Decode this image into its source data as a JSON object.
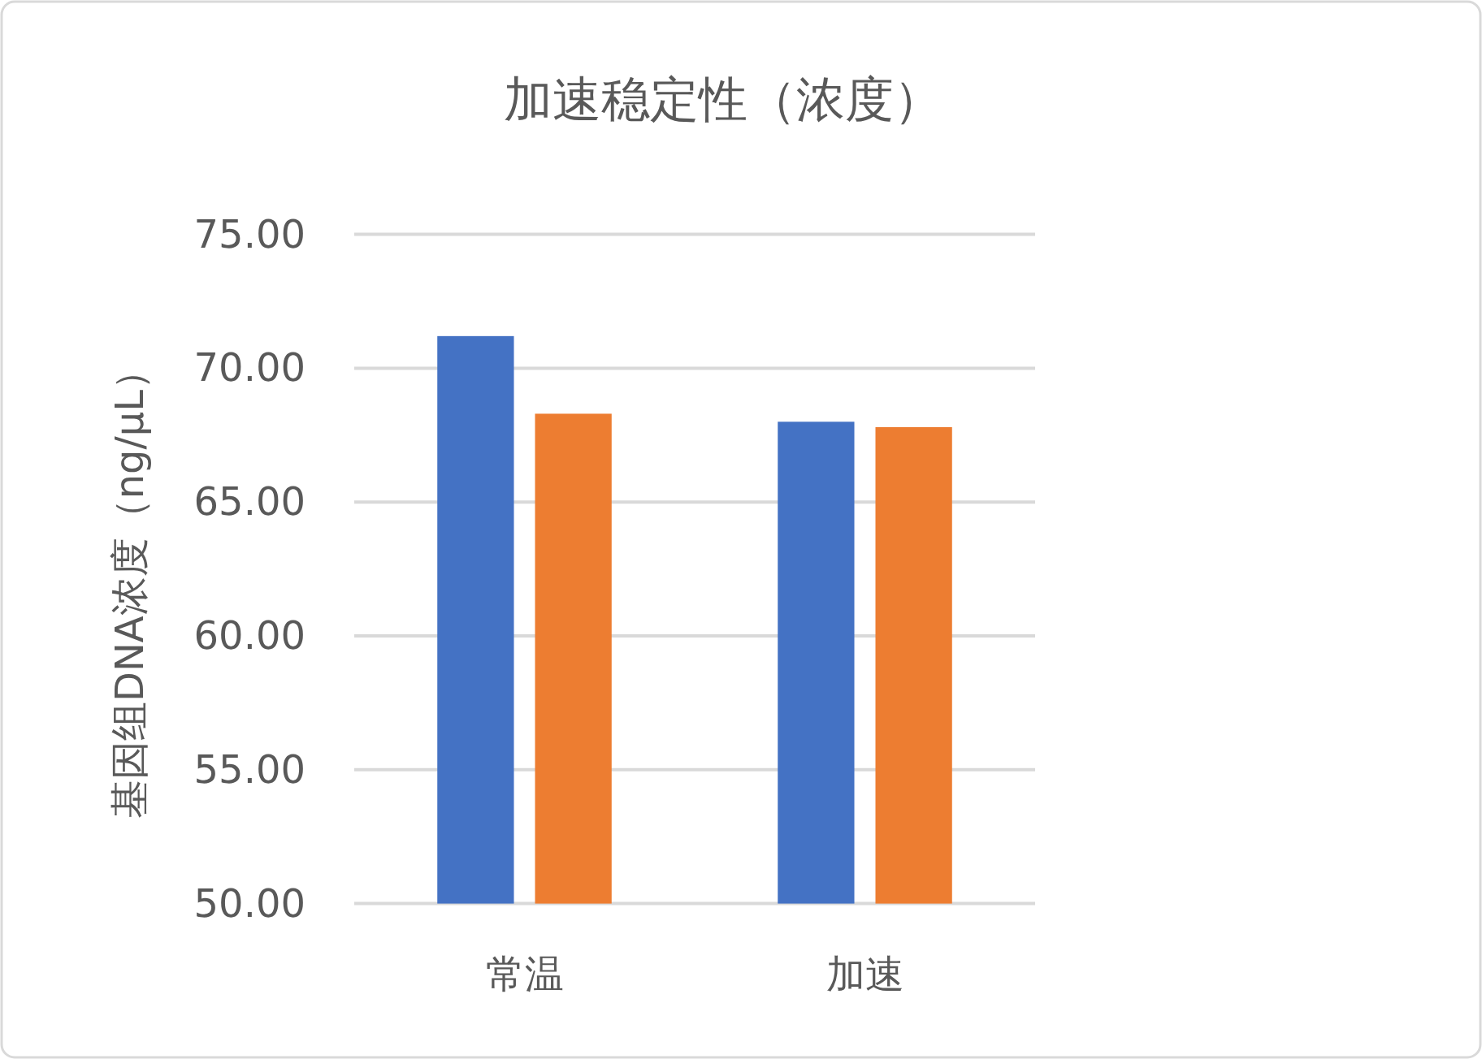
{
  "chart_data": {
    "type": "bar",
    "title": "加速稳定性（浓度）",
    "ylabel": "基因组DNA浓度（ng/μL）",
    "categories": [
      "常温",
      "加速"
    ],
    "series": [
      {
        "color": "#4472c4",
        "values": [
          71.2,
          68.0
        ]
      },
      {
        "color": "#ed7d31",
        "values": [
          68.3,
          67.8
        ]
      }
    ],
    "ylim": [
      50,
      75
    ],
    "yticks": [
      {
        "value": 50,
        "label": "50.00"
      },
      {
        "value": 55,
        "label": "55.00"
      },
      {
        "value": 60,
        "label": "60.00"
      },
      {
        "value": 65,
        "label": "65.00"
      },
      {
        "value": 70,
        "label": "70.00"
      },
      {
        "value": 75,
        "label": "75.00"
      }
    ],
    "grid": "y"
  }
}
